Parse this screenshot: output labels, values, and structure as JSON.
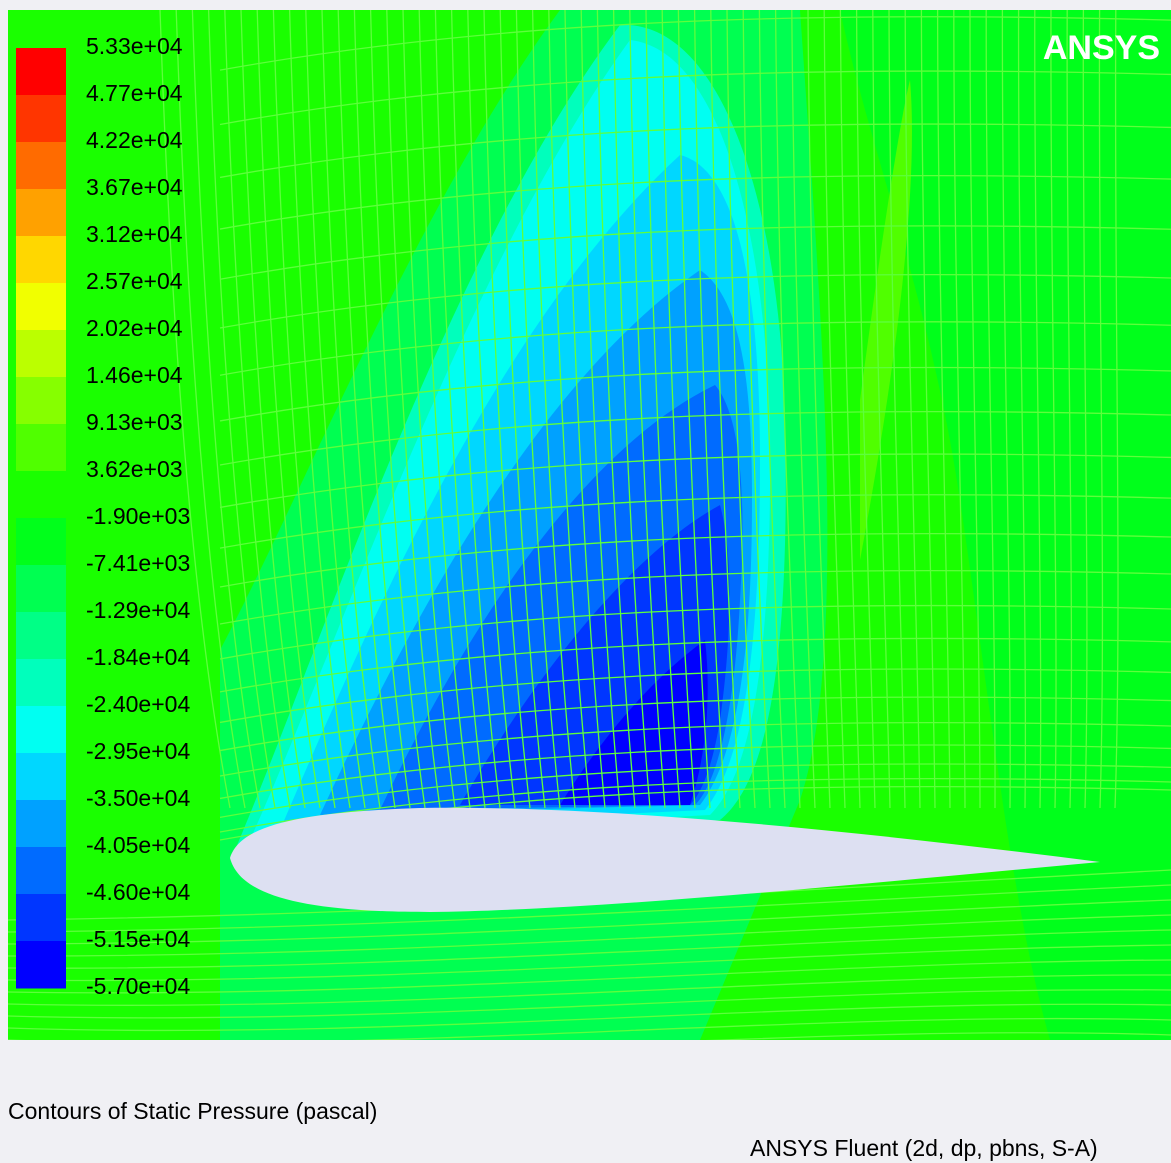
{
  "window": {
    "brand": "ANSYS",
    "caption": "Contours of Static Pressure (pascal)",
    "footer": "ANSYS Fluent (2d, dp, pbns, S-A)"
  },
  "colorbar": {
    "labels": [
      "5.33e+04",
      "4.77e+04",
      "4.22e+04",
      "3.67e+04",
      "3.12e+04",
      "2.57e+04",
      "2.02e+04",
      "1.46e+04",
      "9.13e+03",
      "3.62e+03",
      "-1.90e+03",
      "-7.41e+03",
      "-1.29e+04",
      "-1.84e+04",
      "-2.40e+04",
      "-2.95e+04",
      "-3.50e+04",
      "-4.05e+04",
      "-4.60e+04",
      "-5.15e+04",
      "-5.70e+04"
    ],
    "colors": [
      "#ff0000",
      "#ff3500",
      "#ff6b00",
      "#ffa100",
      "#ffd700",
      "#f1ff00",
      "#bbff00",
      "#86ff00",
      "#50ff00",
      "#1aff00",
      "#00ff1b",
      "#00ff51",
      "#00ff86",
      "#00ffbc",
      "#00fff2",
      "#00d7ff",
      "#00a1ff",
      "#006bff",
      "#0036ff",
      "#0000ff"
    ]
  }
}
